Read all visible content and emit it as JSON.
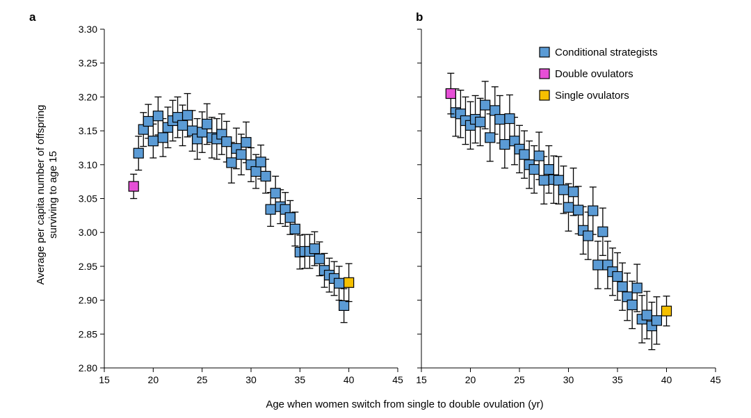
{
  "chart_data": [
    {
      "panel": "a",
      "type": "scatter",
      "xlim": [
        15,
        45
      ],
      "ylim": [
        2.8,
        3.3
      ],
      "x_ticks": [
        "15",
        "20",
        "25",
        "30",
        "35",
        "40",
        "45"
      ],
      "y_ticks": [
        "2.80",
        "2.85",
        "2.90",
        "2.95",
        "3.00",
        "3.05",
        "3.10",
        "3.15",
        "3.20",
        "3.25",
        "3.30"
      ],
      "ylabel": "Average per capita number of offspring surviving to age 15",
      "series": [
        {
          "name": "Conditional strategists",
          "color": "#5B9BD5",
          "points": [
            [
              18.5,
              3.117,
              0.025
            ],
            [
              19,
              3.152,
              0.025
            ],
            [
              19.5,
              3.164,
              0.025
            ],
            [
              20,
              3.135,
              0.025
            ],
            [
              20.5,
              3.172,
              0.028
            ],
            [
              21,
              3.14,
              0.028
            ],
            [
              21.5,
              3.155,
              0.03
            ],
            [
              22,
              3.165,
              0.03
            ],
            [
              22.5,
              3.17,
              0.03
            ],
            [
              23,
              3.158,
              0.03
            ],
            [
              23.5,
              3.173,
              0.032
            ],
            [
              24,
              3.15,
              0.03
            ],
            [
              24.5,
              3.138,
              0.03
            ],
            [
              25,
              3.148,
              0.03
            ],
            [
              25.5,
              3.16,
              0.03
            ],
            [
              26,
              3.14,
              0.03
            ],
            [
              26.5,
              3.138,
              0.03
            ],
            [
              27,
              3.145,
              0.03
            ],
            [
              27.5,
              3.134,
              0.03
            ],
            [
              28,
              3.103,
              0.03
            ],
            [
              28.5,
              3.124,
              0.03
            ],
            [
              29,
              3.115,
              0.03
            ],
            [
              29.5,
              3.133,
              0.03
            ],
            [
              30,
              3.1,
              0.025
            ],
            [
              30.5,
              3.09,
              0.025
            ],
            [
              31,
              3.104,
              0.025
            ],
            [
              31.5,
              3.083,
              0.025
            ],
            [
              32,
              3.034,
              0.025
            ],
            [
              32.5,
              3.058,
              0.025
            ],
            [
              33,
              3.038,
              0.025
            ],
            [
              33.5,
              3.034,
              0.025
            ],
            [
              34,
              3.022,
              0.025
            ],
            [
              34.5,
              3.005,
              0.025
            ],
            [
              35,
              2.971,
              0.025
            ],
            [
              35.5,
              2.972,
              0.025
            ],
            [
              36,
              2.972,
              0.025
            ],
            [
              36.5,
              2.976,
              0.025
            ],
            [
              37,
              2.961,
              0.025
            ],
            [
              37.5,
              2.944,
              0.025
            ],
            [
              38,
              2.937,
              0.025
            ],
            [
              38.5,
              2.932,
              0.025
            ],
            [
              39,
              2.925,
              0.025
            ],
            [
              39.5,
              2.892,
              0.025
            ]
          ]
        },
        {
          "name": "Double ovulators",
          "color": "#E64FD6",
          "points": [
            [
              18,
              3.068,
              0.018
            ]
          ]
        },
        {
          "name": "Single ovulators",
          "color": "#F5C000",
          "points": [
            [
              40,
              2.926,
              0.028
            ]
          ]
        }
      ]
    },
    {
      "panel": "b",
      "type": "scatter",
      "xlim": [
        15,
        45
      ],
      "ylim": [
        2.8,
        3.3
      ],
      "x_ticks": [
        "15",
        "20",
        "25",
        "30",
        "35",
        "40",
        "45"
      ],
      "series": [
        {
          "name": "Conditional strategists",
          "color": "#5B9BD5",
          "points": [
            [
              18.5,
              3.177,
              0.035
            ],
            [
              19,
              3.175,
              0.035
            ],
            [
              19.5,
              3.165,
              0.035
            ],
            [
              20,
              3.158,
              0.035
            ],
            [
              20.5,
              3.167,
              0.035
            ],
            [
              21,
              3.163,
              0.035
            ],
            [
              21.5,
              3.188,
              0.035
            ],
            [
              22,
              3.14,
              0.035
            ],
            [
              22.5,
              3.18,
              0.035
            ],
            [
              23,
              3.167,
              0.035
            ],
            [
              23.5,
              3.13,
              0.035
            ],
            [
              24,
              3.168,
              0.035
            ],
            [
              24.5,
              3.135,
              0.035
            ],
            [
              25,
              3.123,
              0.035
            ],
            [
              25.5,
              3.115,
              0.035
            ],
            [
              26,
              3.1,
              0.035
            ],
            [
              26.5,
              3.093,
              0.035
            ],
            [
              27,
              3.113,
              0.035
            ],
            [
              27.5,
              3.077,
              0.035
            ],
            [
              28,
              3.093,
              0.035
            ],
            [
              28.5,
              3.078,
              0.035
            ],
            [
              29,
              3.077,
              0.035
            ],
            [
              29.5,
              3.063,
              0.035
            ],
            [
              30,
              3.037,
              0.035
            ],
            [
              30.5,
              3.06,
              0.035
            ],
            [
              31,
              3.033,
              0.035
            ],
            [
              31.5,
              3.003,
              0.035
            ],
            [
              32,
              2.995,
              0.035
            ],
            [
              32.5,
              3.032,
              0.035
            ],
            [
              33,
              2.952,
              0.035
            ],
            [
              33.5,
              3.001,
              0.035
            ],
            [
              34,
              2.952,
              0.035
            ],
            [
              34.5,
              2.942,
              0.035
            ],
            [
              35,
              2.935,
              0.035
            ],
            [
              35.5,
              2.92,
              0.035
            ],
            [
              36,
              2.905,
              0.035
            ],
            [
              36.5,
              2.893,
              0.035
            ],
            [
              37,
              2.918,
              0.035
            ],
            [
              37.5,
              2.872,
              0.035
            ],
            [
              38,
              2.878,
              0.035
            ],
            [
              38.5,
              2.862,
              0.035
            ],
            [
              39,
              2.87,
              0.035
            ]
          ]
        },
        {
          "name": "Double ovulators",
          "color": "#E64FD6",
          "points": [
            [
              18,
              3.205,
              0.03
            ]
          ]
        },
        {
          "name": "Single ovulators",
          "color": "#F5C000",
          "points": [
            [
              40,
              2.884,
              0.022
            ]
          ]
        }
      ],
      "legend": {
        "placement": "top-right",
        "entries": [
          {
            "label": "Conditional strategists",
            "color": "#5B9BD5"
          },
          {
            "label": "Double ovulators",
            "color": "#E64FD6"
          },
          {
            "label": "Single ovulators",
            "color": "#F5C000"
          }
        ]
      }
    }
  ],
  "xlabel": "Age when women switch from single to double ovulation (yr)",
  "ylabel_line1": "Average per capita number of offspring",
  "ylabel_line2": "surviving to age 15"
}
